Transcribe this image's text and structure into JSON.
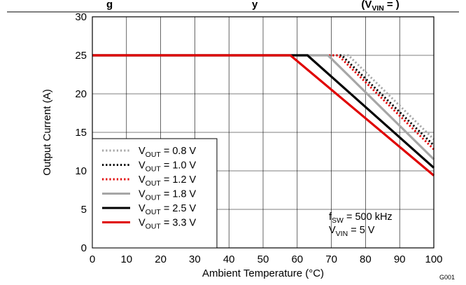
{
  "chart_data": {
    "type": "line",
    "title_fragment": "g",
    "title_tail_prefix": "y",
    "title_tail_suffix": "(",
    "title_tail_var": "V",
    "title_tail_var_sub": "VIN",
    "title_tail_end": "= )",
    "xlabel": "Ambient Temperature (°C)",
    "ylabel": "Output Current (A)",
    "xlim": [
      0,
      100
    ],
    "ylim": [
      0,
      30
    ],
    "x_ticks": [
      "0",
      "10",
      "20",
      "30",
      "40",
      "50",
      "60",
      "70",
      "80",
      "90",
      "100"
    ],
    "y_ticks": [
      "0",
      "5",
      "10",
      "15",
      "20",
      "25",
      "30"
    ],
    "grid": true,
    "legend_position": "bottom-left",
    "series": [
      {
        "name_pre": "V",
        "name_sub": "OUT",
        "name_post": " = 0.8 V",
        "color": "#a6a6a6",
        "style": "dotted",
        "x": [
          0,
          75,
          100
        ],
        "y": [
          25,
          25,
          14.1
        ]
      },
      {
        "name_pre": "V",
        "name_sub": "OUT",
        "name_post": " = 1.0 V",
        "color": "#000000",
        "style": "dotted",
        "x": [
          0,
          73,
          100
        ],
        "y": [
          25,
          25,
          13.3
        ]
      },
      {
        "name_pre": "V",
        "name_sub": "OUT",
        "name_post": " = 1.2 V",
        "color": "#e00000",
        "style": "dotted",
        "x": [
          0,
          72,
          100
        ],
        "y": [
          25,
          25,
          12.8
        ]
      },
      {
        "name_pre": "V",
        "name_sub": "OUT",
        "name_post": " = 1.8 V",
        "color": "#a6a6a6",
        "style": "solid",
        "x": [
          0,
          69,
          100
        ],
        "y": [
          25,
          25,
          11.5
        ]
      },
      {
        "name_pre": "V",
        "name_sub": "OUT",
        "name_post": " = 2.5 V",
        "color": "#000000",
        "style": "solid",
        "x": [
          0,
          63,
          100
        ],
        "y": [
          25,
          25,
          10.4
        ]
      },
      {
        "name_pre": "V",
        "name_sub": "OUT",
        "name_post": " = 3.3 V",
        "color": "#e00000",
        "style": "solid",
        "x": [
          0,
          58,
          100
        ],
        "y": [
          25,
          25,
          9.4
        ]
      }
    ],
    "annotations": [
      {
        "pre": "f",
        "sub": "SW",
        "post": " = 500 kHz"
      },
      {
        "pre": "V",
        "sub": "VIN",
        "post": " = 5 V"
      }
    ],
    "code": "G001"
  }
}
